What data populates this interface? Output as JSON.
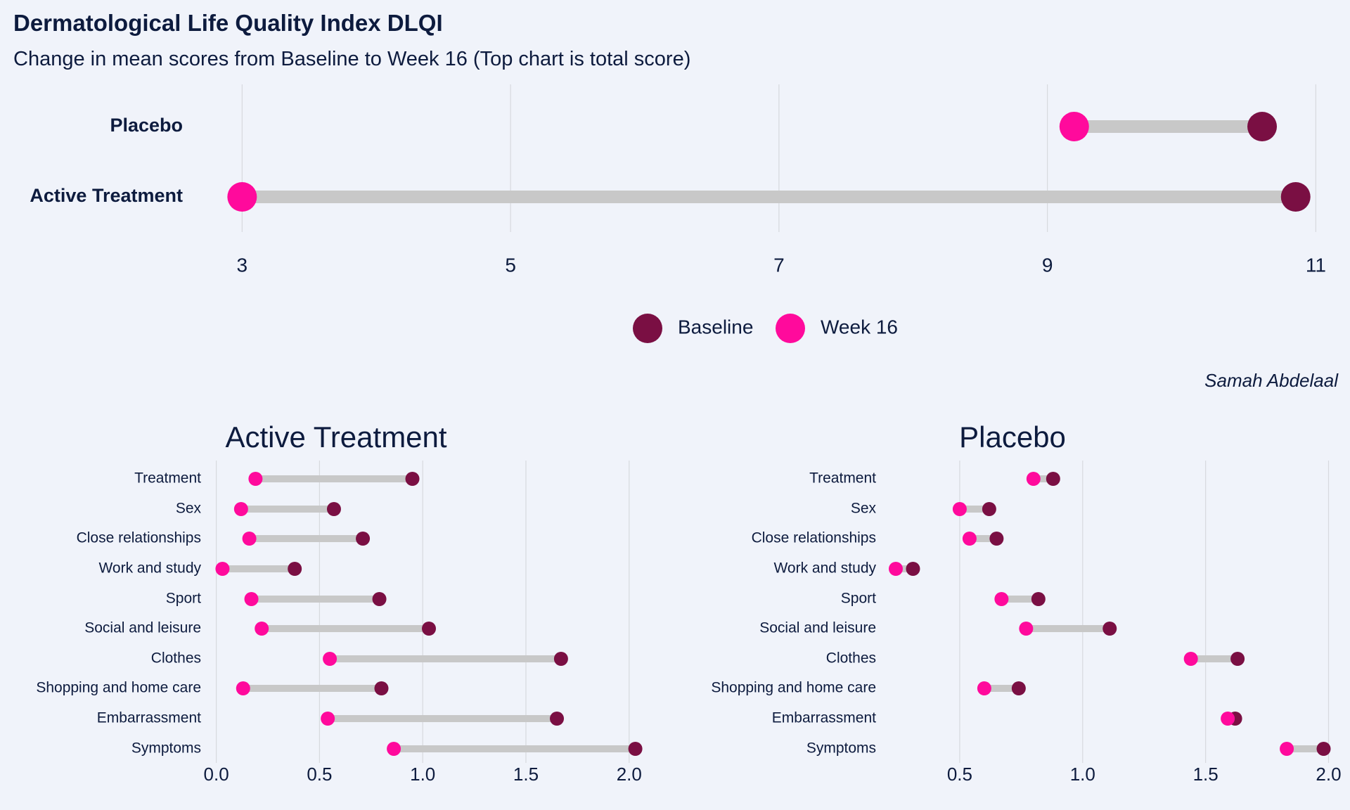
{
  "title": "Dermatological Life Quality Index DLQI",
  "subtitle": "Change in mean scores from Baseline to Week 16  (Top chart is total score)",
  "caption": "Samah Abdelaal",
  "colors": {
    "baseline": "#7a0f43",
    "week16": "#ff0a9c",
    "segment": "#c8c8c8",
    "grid": "#d7d9de",
    "background": "#f0f3fa"
  },
  "legend": {
    "items": [
      "Baseline",
      "Week 16"
    ],
    "placement": "bottom-center"
  },
  "chart_data": [
    {
      "type": "dumbbell",
      "title": "",
      "categories": [
        "Placebo",
        "Active Treatment"
      ],
      "series": [
        {
          "name": "Baseline",
          "values": [
            10.6,
            10.85
          ]
        },
        {
          "name": "Week 16",
          "values": [
            9.2,
            3.0
          ]
        }
      ],
      "xlim": [
        2.6,
        11.15
      ],
      "xticks": [
        3,
        5,
        7,
        9,
        11
      ],
      "grid": true
    },
    {
      "type": "dumbbell",
      "title": "Active Treatment",
      "categories": [
        "Treatment",
        "Sex",
        "Close relationships",
        "Work and study",
        "Sport",
        "Social and leisure",
        "Clothes",
        "Shopping and home care",
        "Embarrassment",
        "Symptoms"
      ],
      "series": [
        {
          "name": "Baseline",
          "values": [
            0.95,
            0.57,
            0.71,
            0.38,
            0.79,
            1.03,
            1.67,
            0.8,
            1.65,
            2.03
          ]
        },
        {
          "name": "Week 16",
          "values": [
            0.19,
            0.12,
            0.16,
            0.03,
            0.17,
            0.22,
            0.55,
            0.13,
            0.54,
            0.86
          ]
        }
      ],
      "xlim": [
        -0.06,
        2.12
      ],
      "xticks": [
        0.0,
        0.5,
        1.0,
        1.5,
        2.0
      ],
      "xtick_labels": [
        "0.0",
        "0.5",
        "1.0",
        "1.5",
        "2.0"
      ],
      "grid": true
    },
    {
      "type": "dumbbell",
      "title": "Placebo",
      "categories": [
        "Treatment",
        "Sex",
        "Close relationships",
        "Work and study",
        "Sport",
        "Social and leisure",
        "Clothes",
        "Shopping and home care",
        "Embarrassment",
        "Symptoms"
      ],
      "series": [
        {
          "name": "Baseline",
          "values": [
            0.88,
            0.62,
            0.65,
            0.31,
            0.82,
            1.11,
            1.63,
            0.74,
            1.62,
            1.98
          ]
        },
        {
          "name": "Week 16",
          "values": [
            0.8,
            0.5,
            0.54,
            0.24,
            0.67,
            0.77,
            1.44,
            0.6,
            1.59,
            1.83
          ]
        }
      ],
      "xlim": [
        0.2,
        2.03
      ],
      "xticks": [
        0.5,
        1.0,
        1.5,
        2.0
      ],
      "xtick_labels": [
        "0.5",
        "1.0",
        "1.5",
        "2.0"
      ],
      "grid": true
    }
  ]
}
